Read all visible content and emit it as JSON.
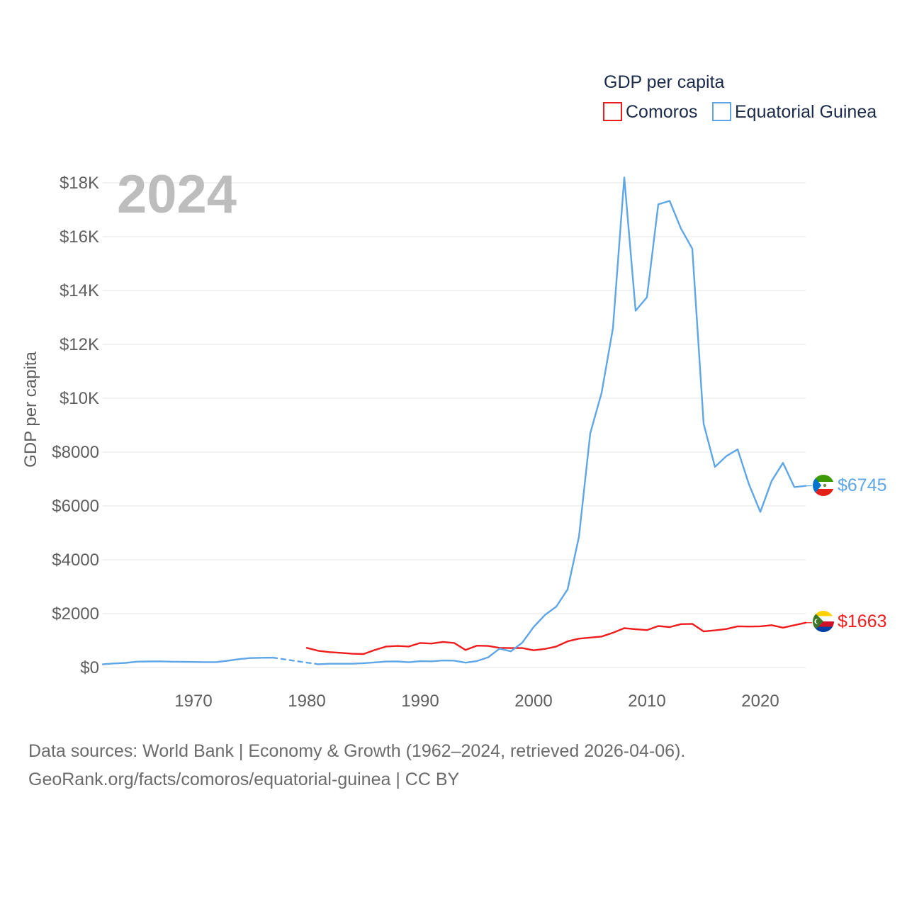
{
  "year_badge": "2024",
  "footer": {
    "line1": "Data sources: World Bank | Economy & Growth (1962–2024, retrieved 2026-04-06).",
    "line2": "GeoRank.org/facts/comoros/equatorial-guinea | CC BY"
  },
  "colors": {
    "comoros": "#ee1c1c",
    "equatorial_guinea": "#5ea6e6",
    "grid": "#e6e6e6",
    "badge": "#bdbdbd"
  },
  "chart_data": {
    "type": "line",
    "title": "GDP per capita",
    "legend_title": "GDP per capita",
    "legend_placement": "top-right",
    "xlabel": "",
    "ylabel": "GDP per capita",
    "xlim": [
      1962,
      2024
    ],
    "ylim": [
      0,
      18000
    ],
    "x_ticks": [
      1970,
      1980,
      1990,
      2000,
      2010,
      2020
    ],
    "x_tick_labels": [
      "1970",
      "1980",
      "1990",
      "2000",
      "2010",
      "2020"
    ],
    "y_ticks": [
      0,
      2000,
      4000,
      6000,
      8000,
      10000,
      12000,
      14000,
      16000,
      18000
    ],
    "y_tick_labels": [
      "$0",
      "$2000",
      "$4000",
      "$6000",
      "$8000",
      "$10K",
      "$12K",
      "$14K",
      "$16K",
      "$18K"
    ],
    "grid": true,
    "series": [
      {
        "name": "Comoros",
        "key": "comoros",
        "end_label": "$1663",
        "flag": "comoros-flag",
        "points": [
          [
            1980,
            730
          ],
          [
            1981,
            620
          ],
          [
            1982,
            570
          ],
          [
            1983,
            545
          ],
          [
            1984,
            510
          ],
          [
            1985,
            500
          ],
          [
            1986,
            650
          ],
          [
            1987,
            780
          ],
          [
            1988,
            800
          ],
          [
            1989,
            780
          ],
          [
            1990,
            910
          ],
          [
            1991,
            890
          ],
          [
            1992,
            950
          ],
          [
            1993,
            910
          ],
          [
            1994,
            650
          ],
          [
            1995,
            810
          ],
          [
            1996,
            800
          ],
          [
            1997,
            730
          ],
          [
            1998,
            720
          ],
          [
            1999,
            720
          ],
          [
            2000,
            640
          ],
          [
            2001,
            690
          ],
          [
            2002,
            780
          ],
          [
            2003,
            970
          ],
          [
            2004,
            1070
          ],
          [
            2005,
            1110
          ],
          [
            2006,
            1150
          ],
          [
            2007,
            1290
          ],
          [
            2008,
            1460
          ],
          [
            2009,
            1420
          ],
          [
            2010,
            1390
          ],
          [
            2011,
            1540
          ],
          [
            2012,
            1500
          ],
          [
            2013,
            1610
          ],
          [
            2014,
            1620
          ],
          [
            2015,
            1340
          ],
          [
            2016,
            1380
          ],
          [
            2017,
            1430
          ],
          [
            2018,
            1530
          ],
          [
            2019,
            1520
          ],
          [
            2020,
            1530
          ],
          [
            2021,
            1570
          ],
          [
            2022,
            1480
          ],
          [
            2023,
            1570
          ],
          [
            2024,
            1663
          ]
        ]
      },
      {
        "name": "Equatorial Guinea",
        "key": "equatorial_guinea",
        "end_label": "$6745",
        "flag": "equatorial-guinea-flag",
        "points": [
          [
            1962,
            120
          ],
          [
            1963,
            150
          ],
          [
            1964,
            170
          ],
          [
            1965,
            215
          ],
          [
            1966,
            225
          ],
          [
            1967,
            230
          ],
          [
            1968,
            215
          ],
          [
            1969,
            210
          ],
          [
            1970,
            205
          ],
          [
            1971,
            200
          ],
          [
            1972,
            200
          ],
          [
            1973,
            250
          ],
          [
            1974,
            310
          ],
          [
            1975,
            350
          ],
          [
            1976,
            360
          ],
          [
            1977,
            365
          ]
        ],
        "gap_points": [
          [
            1977,
            365
          ],
          [
            1981,
            120
          ]
        ],
        "points_after_gap": [
          [
            1981,
            120
          ],
          [
            1982,
            140
          ],
          [
            1983,
            140
          ],
          [
            1984,
            140
          ],
          [
            1985,
            160
          ],
          [
            1986,
            190
          ],
          [
            1987,
            220
          ],
          [
            1988,
            225
          ],
          [
            1989,
            195
          ],
          [
            1990,
            235
          ],
          [
            1991,
            230
          ],
          [
            1992,
            260
          ],
          [
            1993,
            255
          ],
          [
            1994,
            180
          ],
          [
            1995,
            240
          ],
          [
            1996,
            380
          ],
          [
            1997,
            700
          ],
          [
            1998,
            600
          ],
          [
            1999,
            920
          ],
          [
            2000,
            1500
          ],
          [
            2001,
            1950
          ],
          [
            2002,
            2260
          ],
          [
            2003,
            2900
          ],
          [
            2004,
            4850
          ],
          [
            2005,
            8700
          ],
          [
            2006,
            10200
          ],
          [
            2007,
            12600
          ],
          [
            2008,
            18200
          ],
          [
            2009,
            13250
          ],
          [
            2010,
            13750
          ],
          [
            2011,
            17200
          ],
          [
            2012,
            17330
          ],
          [
            2013,
            16300
          ],
          [
            2014,
            15550
          ],
          [
            2015,
            9050
          ],
          [
            2016,
            7450
          ],
          [
            2017,
            7850
          ],
          [
            2018,
            8100
          ],
          [
            2019,
            6800
          ],
          [
            2020,
            5780
          ],
          [
            2021,
            6930
          ],
          [
            2022,
            7600
          ],
          [
            2023,
            6700
          ],
          [
            2024,
            6745
          ]
        ]
      }
    ]
  }
}
